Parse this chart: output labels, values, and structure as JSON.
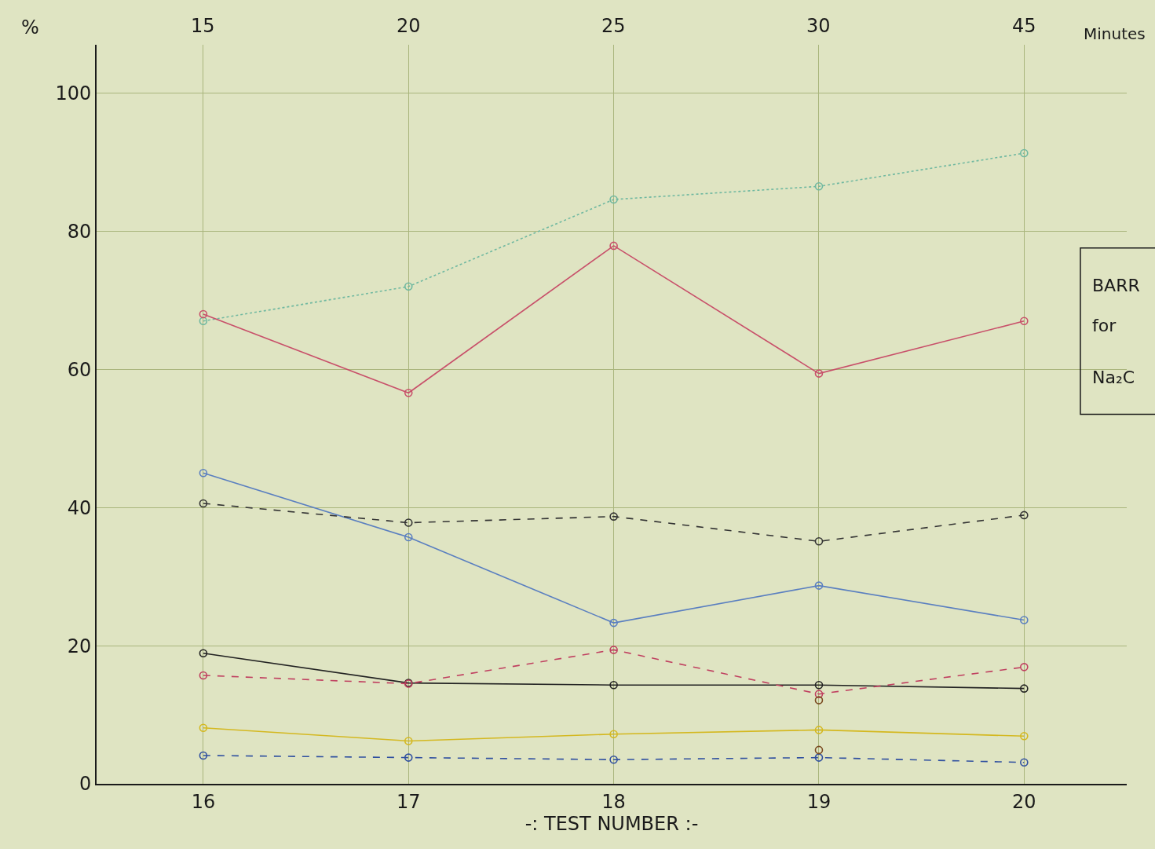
{
  "chart_data": {
    "type": "line",
    "ylabel": "%",
    "xlabel": "-: TEST NUMBER :-",
    "categories": [
      "16",
      "17",
      "18",
      "19",
      "20"
    ],
    "x2label": "Minutes",
    "ylim": [
      0,
      107
    ],
    "yticks": [
      0,
      20,
      40,
      60,
      80,
      100
    ],
    "grid": true,
    "marker": "circle",
    "series": [
      {
        "color": "#6fb8a0",
        "line_style": "dotted",
        "values": [
          67,
          72,
          84.6,
          86.5,
          91.3
        ]
      },
      {
        "color": "#c8506a",
        "line_style": "solid",
        "values": [
          68,
          56.6,
          77.9,
          59.4,
          67
        ]
      },
      {
        "color": "#5a7fc0",
        "line_style": "solid",
        "values": [
          45,
          35.7,
          23.3,
          28.7,
          23.7
        ]
      },
      {
        "color": "#333333",
        "line_style": "dashed",
        "values": [
          40.6,
          37.8,
          38.7,
          35.1,
          38.9
        ]
      },
      {
        "color": "#222222",
        "line_style": "solid",
        "values": [
          18.9,
          14.6,
          14.3,
          14.3,
          13.8
        ]
      },
      {
        "color": "#c04060",
        "line_style": "dashed",
        "values": [
          15.7,
          14.5,
          19.4,
          13,
          16.9
        ]
      },
      {
        "color": "#d4b820",
        "line_style": "solid",
        "values": [
          8.1,
          6.2,
          7.2,
          7.8,
          6.9
        ]
      },
      {
        "color": "#3050a0",
        "line_style": "dashed",
        "values": [
          4.1,
          3.8,
          3.5,
          3.8,
          3.1
        ]
      },
      {
        "type": "scatter",
        "color": "#7a4a20",
        "values": [
          null,
          null,
          null,
          12.1,
          null
        ]
      },
      {
        "type": "scatter",
        "color": "#7a4a20",
        "values": [
          null,
          null,
          null,
          4.9,
          null
        ]
      }
    ],
    "annotations": [
      "15",
      "20",
      "25",
      "30",
      "45",
      "BARR",
      "for",
      "Na₂C"
    ]
  }
}
